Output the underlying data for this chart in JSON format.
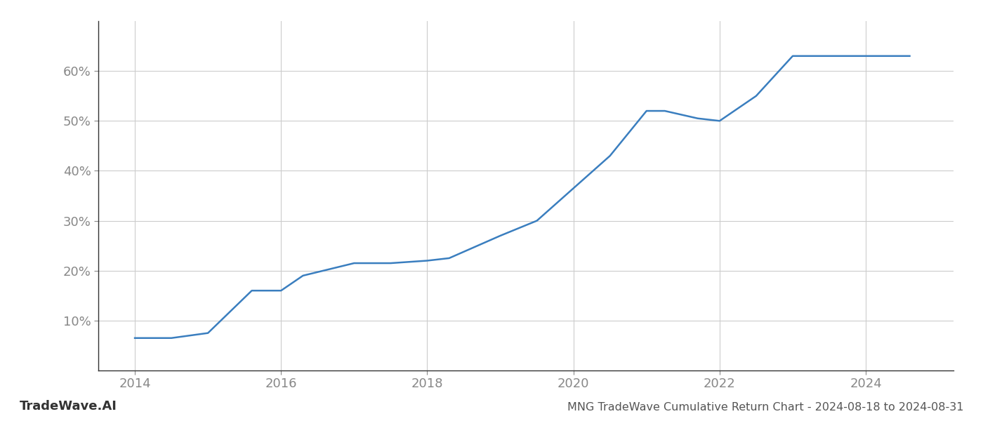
{
  "x_values": [
    2014.0,
    2014.5,
    2015.0,
    2015.6,
    2016.0,
    2016.3,
    2017.0,
    2017.5,
    2018.0,
    2018.3,
    2019.0,
    2019.5,
    2020.0,
    2020.5,
    2021.0,
    2021.25,
    2021.7,
    2022.0,
    2022.5,
    2023.0,
    2023.5,
    2024.0,
    2024.6
  ],
  "y_values": [
    6.5,
    6.5,
    7.5,
    16.0,
    16.0,
    19.0,
    21.5,
    21.5,
    22.0,
    22.5,
    27.0,
    30.0,
    36.5,
    43.0,
    52.0,
    52.0,
    50.5,
    50.0,
    55.0,
    63.0,
    63.0,
    63.0,
    63.0
  ],
  "line_color": "#3a7ebf",
  "line_width": 1.8,
  "title": "MNG TradeWave Cumulative Return Chart - 2024-08-18 to 2024-08-31",
  "ylim": [
    0,
    70
  ],
  "xlim": [
    2013.5,
    2025.2
  ],
  "yticks": [
    10,
    20,
    30,
    40,
    50,
    60
  ],
  "xticks": [
    2014,
    2016,
    2018,
    2020,
    2022,
    2024
  ],
  "grid_color": "#cccccc",
  "background_color": "#ffffff",
  "tick_color": "#888888",
  "watermark_text": "TradeWave.AI",
  "watermark_color": "#333333",
  "title_color": "#555555",
  "title_fontsize": 11.5,
  "watermark_fontsize": 13,
  "tick_fontsize": 13,
  "left_spine_color": "#333333"
}
